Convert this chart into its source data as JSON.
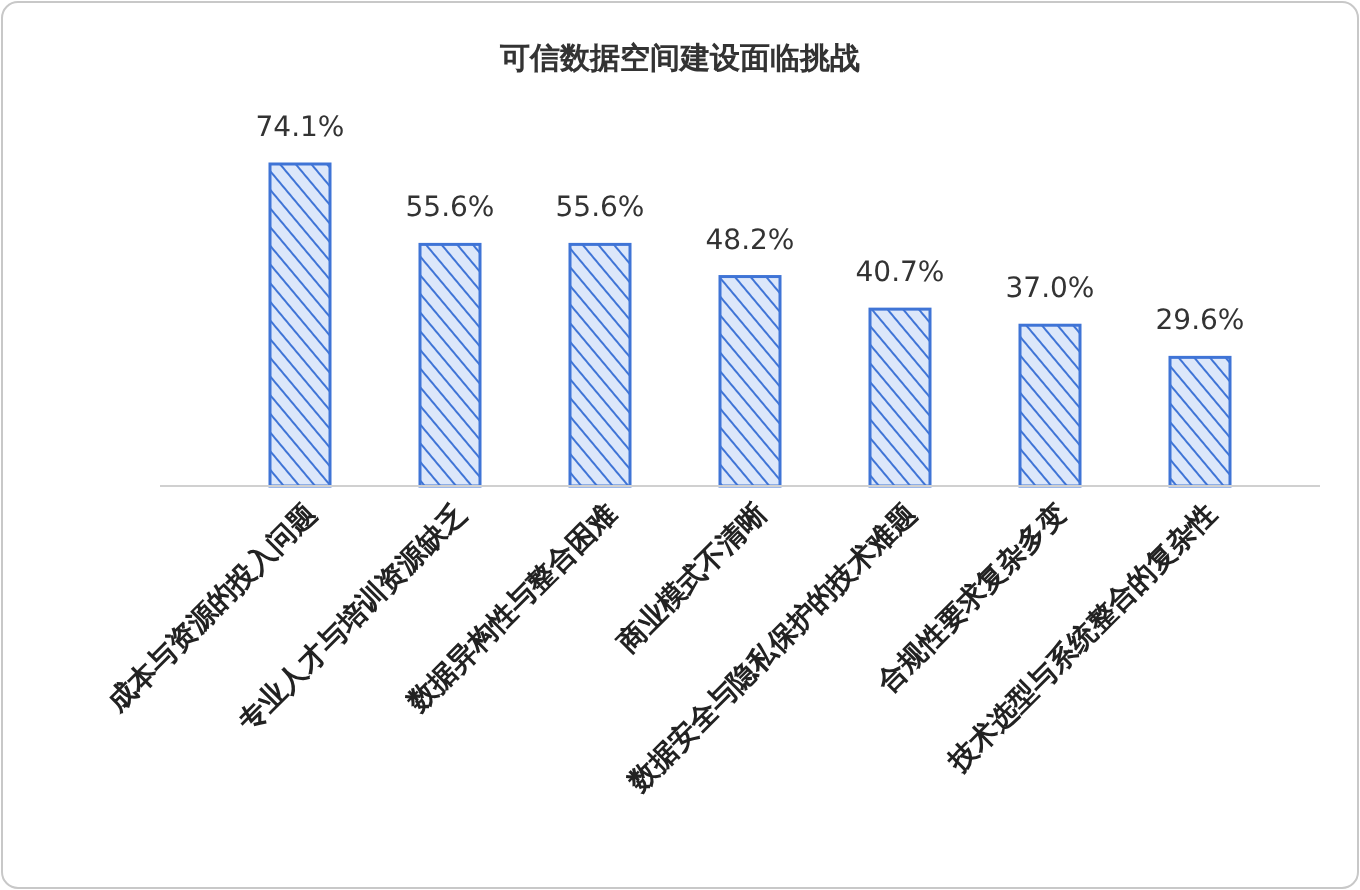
{
  "chart_data": {
    "type": "bar",
    "title": "可信数据空间建设面临挑战",
    "categories": [
      "成本与资源的投入问题",
      "专业人才与培训资源缺乏",
      "数据异构性与整合困难",
      "商业模式不清晰",
      "数据安全与隐私保护的技术难题",
      "合规性要求复杂多变",
      "技术选型与系统整合的复杂性"
    ],
    "values": [
      74.1,
      55.6,
      55.6,
      48.2,
      40.7,
      37.0,
      29.6
    ],
    "value_labels": [
      "74.1%",
      "55.6%",
      "55.6%",
      "48.2%",
      "40.7%",
      "37.0%",
      "29.6%"
    ],
    "color": "#3f74d6"
  }
}
